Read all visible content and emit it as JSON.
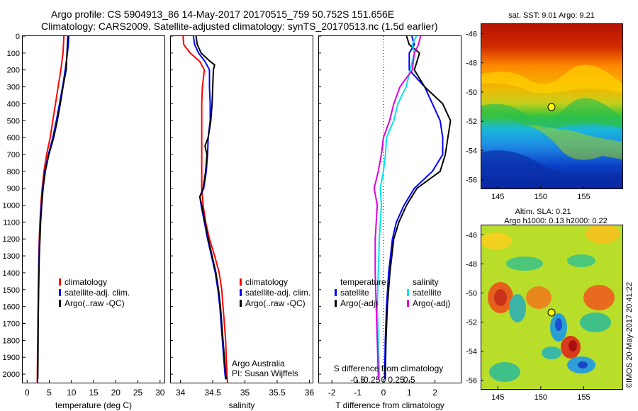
{
  "header": {
    "line1": "Argo profile: CS 5904913_86 14-May-2017 20170515_759 50.752S 151.656E",
    "line2": "Climatology: CARS2009. Satellite-adjusted climatology: synTS_20170513.nc (1.5d earlier)"
  },
  "credits": {
    "org": "Argo Australia",
    "pi": "PI: Susan Wijffels",
    "stamp": "©IMOS 20-May-2017 20:41:22"
  },
  "colors": {
    "climatology": "#ff0000",
    "satellite": "#0000ff",
    "argo": "#000000",
    "sal_satellite": "#00e5ee",
    "sal_argo": "#dd00dd"
  },
  "legend_profiles": {
    "climatology": "climatology",
    "satellite": "satellite-adj. clim.",
    "argo": "Argo(..raw -QC)"
  },
  "legend_diff": {
    "temperature_head": "temperature",
    "salinity_head": "salinity",
    "satellite": "satellite",
    "argo": "Argo(-adj)"
  },
  "map_sst": {
    "title": "sat. SST: 9.01  Argo: 9.21",
    "y_ticks": [
      "-46",
      "-48",
      "-50",
      "-52",
      "-54",
      "-56"
    ],
    "x_ticks": [
      "145",
      "150",
      "155"
    ]
  },
  "map_sla": {
    "title1": "Altim. SLA: 0.21",
    "title2": "Argo h1000: 0.13  h2000: 0.22",
    "y_ticks": [
      "-46",
      "-48",
      "-50",
      "-52",
      "-54",
      "-56"
    ],
    "x_ticks": [
      "145",
      "150",
      "155"
    ]
  },
  "chart_data": [
    {
      "type": "line",
      "xlabel": "temperature (deg C)",
      "ylabel": "",
      "xlim": [
        -1,
        31
      ],
      "ylim": [
        2050,
        0
      ],
      "x_ticks": [
        "0",
        "5",
        "10",
        "15",
        "20",
        "25",
        "30"
      ],
      "y_ticks": [
        "0",
        "100",
        "200",
        "300",
        "400",
        "500",
        "600",
        "700",
        "800",
        "900",
        "1000",
        "1100",
        "1200",
        "1300",
        "1400",
        "1500",
        "1600",
        "1700",
        "1800",
        "1900",
        "2000"
      ],
      "series": [
        {
          "name": "climatology",
          "depth": [
            0,
            100,
            200,
            300,
            400,
            500,
            600,
            700,
            800,
            900,
            1000,
            1100,
            1200,
            1300,
            1500,
            1700,
            1900,
            2050
          ],
          "values": [
            8.3,
            8.1,
            7.6,
            7.0,
            6.4,
            5.8,
            5.2,
            4.4,
            3.8,
            3.4,
            3.1,
            2.9,
            2.75,
            2.65,
            2.55,
            2.45,
            2.35,
            2.3
          ]
        },
        {
          "name": "satellite-adj. clim.",
          "depth": [
            0,
            50,
            100,
            200,
            300,
            400,
            500,
            600,
            700,
            800,
            900,
            1000,
            1100,
            1200,
            1300,
            1500,
            1700,
            1900,
            2050
          ],
          "values": [
            9.4,
            9.3,
            9.1,
            8.6,
            8.0,
            7.3,
            6.6,
            5.8,
            4.8,
            4.0,
            3.5,
            3.2,
            2.95,
            2.8,
            2.7,
            2.55,
            2.45,
            2.4,
            2.35
          ]
        },
        {
          "name": "Argo(..raw -QC)",
          "depth": [
            0,
            50,
            100,
            200,
            300,
            400,
            500,
            600,
            700,
            800,
            900,
            1000,
            1100,
            1200,
            1300,
            1500,
            1700,
            1900,
            2030
          ],
          "values": [
            9.2,
            9.1,
            9.0,
            8.8,
            8.1,
            7.5,
            6.8,
            6.0,
            4.9,
            4.1,
            3.6,
            3.3,
            3.05,
            2.9,
            2.75,
            2.6,
            2.5,
            2.45,
            2.4
          ]
        }
      ]
    },
    {
      "type": "line",
      "xlabel": "salinity",
      "ylabel": "",
      "xlim": [
        33.85,
        36.05
      ],
      "ylim": [
        2050,
        0
      ],
      "x_ticks": [
        "34",
        "34.5",
        "35",
        "35.5",
        "36"
      ],
      "series": [
        {
          "name": "climatology",
          "depth": [
            0,
            50,
            100,
            150,
            200,
            300,
            400,
            500,
            600,
            700,
            800,
            900,
            1000,
            1100,
            1200,
            1300,
            1400,
            1500,
            1600,
            1700,
            1800,
            1900,
            2000,
            2050
          ],
          "values": [
            34.04,
            34.05,
            34.15,
            34.3,
            34.37,
            34.34,
            34.33,
            34.33,
            34.33,
            34.33,
            34.33,
            34.33,
            34.35,
            34.39,
            34.45,
            34.53,
            34.6,
            34.64,
            34.66,
            34.68,
            34.7,
            34.71,
            34.72,
            34.73
          ]
        },
        {
          "name": "satellite-adj. clim.",
          "depth": [
            0,
            50,
            100,
            150,
            200,
            300,
            400,
            500,
            600,
            700,
            800,
            900,
            950,
            1000,
            1100,
            1200,
            1300,
            1400,
            1500,
            1600,
            1700,
            1800,
            1900,
            2000,
            2030
          ],
          "values": [
            34.2,
            34.22,
            34.28,
            34.38,
            34.45,
            34.45,
            34.46,
            34.46,
            34.43,
            34.42,
            34.4,
            34.36,
            34.3,
            34.32,
            34.37,
            34.42,
            34.48,
            34.54,
            34.58,
            34.61,
            34.63,
            34.65,
            34.67,
            34.69,
            34.7
          ]
        },
        {
          "name": "Argo(..raw -QC)",
          "depth": [
            0,
            50,
            100,
            150,
            170,
            200,
            300,
            400,
            500,
            600,
            650,
            700,
            800,
            900,
            950,
            1000,
            1100,
            1200,
            1300,
            1400,
            1500,
            1600,
            1700,
            1800,
            1900,
            2000,
            2030
          ],
          "values": [
            34.24,
            34.26,
            34.32,
            34.46,
            34.53,
            34.51,
            34.5,
            34.49,
            34.47,
            34.43,
            34.38,
            34.41,
            34.39,
            34.35,
            34.3,
            34.33,
            34.38,
            34.43,
            34.49,
            34.55,
            34.59,
            34.62,
            34.64,
            34.66,
            34.68,
            34.7,
            34.71
          ]
        }
      ]
    },
    {
      "type": "line",
      "xlabel": "T difference from climatology",
      "xlabel_top": "S difference from climatology",
      "ylabel": "",
      "xlim": [
        -2.5,
        3.0
      ],
      "ylim": [
        2050,
        0
      ],
      "x_ticks": [
        "-2",
        "-1",
        "0",
        "1",
        "2"
      ],
      "x_ticks_top": [
        "-0.5",
        "-0.25",
        "0",
        "0.25",
        "0.5"
      ],
      "series": [
        {
          "name": "temperature satellite",
          "depth": [
            0,
            50,
            100,
            200,
            300,
            400,
            500,
            600,
            700,
            800,
            900,
            1000,
            1100,
            1200,
            1400,
            1600,
            1800,
            2000,
            2030
          ],
          "values": [
            1.1,
            1.2,
            1.0,
            1.0,
            1.6,
            1.9,
            2.2,
            2.3,
            2.3,
            1.9,
            1.2,
            0.8,
            0.5,
            0.35,
            0.2,
            0.12,
            0.07,
            0.05,
            0.05
          ]
        },
        {
          "name": "temperature Argo(-adj)",
          "depth": [
            0,
            50,
            100,
            200,
            300,
            400,
            500,
            600,
            700,
            800,
            900,
            1000,
            1100,
            1200,
            1400,
            1600,
            1800,
            2000,
            2030
          ],
          "values": [
            0.9,
            1.0,
            1.4,
            1.2,
            1.6,
            2.3,
            2.6,
            2.5,
            2.4,
            2.2,
            1.3,
            0.9,
            0.6,
            0.4,
            0.25,
            0.15,
            0.1,
            0.07,
            0.07
          ]
        },
        {
          "name": "salinity satellite",
          "depth": [
            0,
            50,
            100,
            200,
            300,
            400,
            500,
            600,
            700,
            800,
            900,
            1000,
            1200,
            1400,
            1600,
            1800,
            2000,
            2030
          ],
          "values": [
            0.32,
            0.28,
            0.3,
            0.26,
            0.22,
            0.14,
            0.1,
            0.03,
            0.02,
            0.0,
            -0.03,
            -0.02,
            -0.04,
            -0.05,
            -0.06,
            -0.05,
            -0.04,
            -0.04
          ]
        },
        {
          "name": "salinity Argo(-adj)",
          "depth": [
            0,
            50,
            100,
            200,
            300,
            400,
            500,
            600,
            700,
            800,
            900,
            1000,
            1200,
            1400,
            1600,
            1800,
            2000,
            2030
          ],
          "values": [
            0.36,
            0.34,
            0.3,
            0.28,
            0.16,
            0.1,
            0.06,
            0.0,
            -0.02,
            -0.05,
            -0.09,
            -0.06,
            -0.08,
            -0.08,
            -0.07,
            -0.06,
            -0.05,
            -0.05
          ]
        }
      ]
    }
  ]
}
